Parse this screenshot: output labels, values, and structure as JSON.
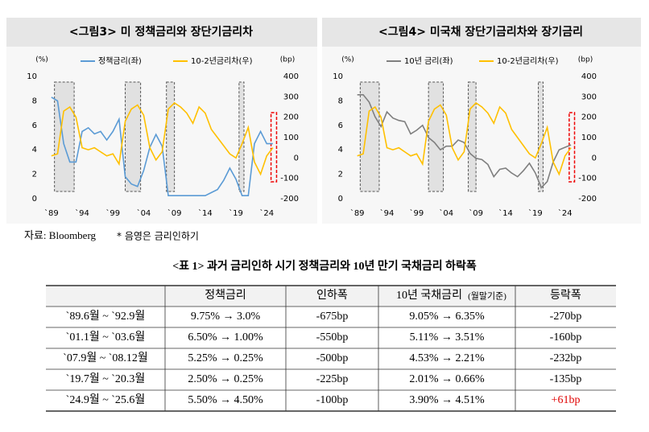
{
  "chart_data": [
    {
      "type": "line",
      "title": "<그림3> 미 정책금리와 장단기금리차",
      "y_label": "(%)",
      "y2_label": "(bp)",
      "x": [
        1989,
        1990,
        1991,
        1992,
        1993,
        1994,
        1995,
        1996,
        1997,
        1998,
        1999,
        2000,
        2001,
        2002,
        2003,
        2004,
        2005,
        2006,
        2007,
        2008,
        2009,
        2010,
        2011,
        2012,
        2013,
        2014,
        2015,
        2016,
        2017,
        2018,
        2019,
        2020,
        2021,
        2022,
        2023,
        2024,
        2025
      ],
      "xlim": [
        1988.5,
        2025.8
      ],
      "xticks": [
        {
          "value": 1989,
          "label": "`89"
        },
        {
          "value": 1994,
          "label": "`94"
        },
        {
          "value": 1999,
          "label": "`99"
        },
        {
          "value": 2004,
          "label": "`04"
        },
        {
          "value": 2009,
          "label": "`09"
        },
        {
          "value": 2014,
          "label": "`14"
        },
        {
          "value": 2019,
          "label": "`19"
        },
        {
          "value": 2024,
          "label": "`24"
        }
      ],
      "ylim": [
        0,
        10
      ],
      "yticks": [
        0,
        2,
        4,
        6,
        8,
        10
      ],
      "y2lim": [
        -200,
        400
      ],
      "y2ticks": [
        -200,
        -100,
        0,
        100,
        200,
        300,
        400
      ],
      "shaded_x": [
        [
          1989.5,
          1992.7
        ],
        [
          2001,
          2003.5
        ],
        [
          2007.7,
          2009
        ],
        [
          2019.5,
          2020.3
        ]
      ],
      "highlight_x": [
        2024.7,
        2025.6
      ],
      "series": [
        {
          "name": "정책금리(좌)",
          "color": "#5b9bd5",
          "values": [
            8.3,
            8.0,
            4.5,
            3.0,
            3.0,
            5.5,
            5.8,
            5.3,
            5.5,
            4.8,
            5.5,
            6.5,
            1.8,
            1.2,
            1.0,
            2.3,
            4.2,
            5.25,
            4.3,
            0.25,
            0.25,
            0.25,
            0.25,
            0.25,
            0.25,
            0.25,
            0.5,
            0.75,
            1.5,
            2.5,
            1.6,
            0.25,
            0.25,
            4.5,
            5.5,
            4.5,
            4.5
          ]
        },
        {
          "name": "10-2년금리차(우)",
          "color": "#ffc000",
          "axis": "y2",
          "values": [
            10,
            20,
            230,
            250,
            200,
            50,
            40,
            50,
            30,
            10,
            20,
            -30,
            180,
            240,
            260,
            210,
            50,
            -10,
            30,
            240,
            270,
            250,
            220,
            170,
            250,
            220,
            140,
            100,
            60,
            20,
            0,
            70,
            150,
            -20,
            -80,
            10,
            50
          ]
        }
      ]
    },
    {
      "type": "line",
      "title": "<그림4> 미국채 장단기금리차와 장기금리",
      "y_label": "(%)",
      "y2_label": "(bp)",
      "x": [
        1989,
        1990,
        1991,
        1992,
        1993,
        1994,
        1995,
        1996,
        1997,
        1998,
        1999,
        2000,
        2001,
        2002,
        2003,
        2004,
        2005,
        2006,
        2007,
        2008,
        2009,
        2010,
        2011,
        2012,
        2013,
        2014,
        2015,
        2016,
        2017,
        2018,
        2019,
        2020,
        2021,
        2022,
        2023,
        2024,
        2025
      ],
      "xlim": [
        1988.5,
        2025.8
      ],
      "xticks": [
        {
          "value": 1989,
          "label": "`89"
        },
        {
          "value": 1994,
          "label": "`94"
        },
        {
          "value": 1999,
          "label": "`99"
        },
        {
          "value": 2004,
          "label": "`04"
        },
        {
          "value": 2009,
          "label": "`09"
        },
        {
          "value": 2014,
          "label": "`14"
        },
        {
          "value": 2019,
          "label": "`19"
        },
        {
          "value": 2024,
          "label": "`24"
        }
      ],
      "ylim": [
        0,
        10
      ],
      "yticks": [
        0,
        2,
        4,
        6,
        8,
        10
      ],
      "y2lim": [
        -200,
        400
      ],
      "y2ticks": [
        -200,
        -100,
        0,
        100,
        200,
        300,
        400
      ],
      "shaded_x": [
        [
          1989.5,
          1992.7
        ],
        [
          2001,
          2003.5
        ],
        [
          2007.7,
          2009
        ],
        [
          2019.5,
          2020.3
        ]
      ],
      "highlight_x": [
        2024.7,
        2025.6
      ],
      "series": [
        {
          "name": "10년 금리(좌)",
          "color": "#7f7f7f",
          "values": [
            8.5,
            8.5,
            7.9,
            6.7,
            5.9,
            7.1,
            6.6,
            6.4,
            6.3,
            5.3,
            5.6,
            6.0,
            5.0,
            4.6,
            4.0,
            4.3,
            4.3,
            4.8,
            4.6,
            3.7,
            3.3,
            3.2,
            2.8,
            1.8,
            2.4,
            2.5,
            2.1,
            1.8,
            2.3,
            2.9,
            2.1,
            0.9,
            1.4,
            3.0,
            4.0,
            4.2,
            4.4
          ]
        },
        {
          "name": "10-2년금리차(우)",
          "color": "#ffc000",
          "axis": "y2",
          "values": [
            10,
            20,
            230,
            250,
            200,
            50,
            40,
            50,
            30,
            10,
            20,
            -30,
            180,
            240,
            260,
            210,
            50,
            -10,
            30,
            240,
            270,
            250,
            220,
            170,
            250,
            220,
            140,
            100,
            60,
            20,
            0,
            70,
            150,
            -20,
            -80,
            10,
            50
          ]
        }
      ]
    }
  ],
  "source": "자료: Bloomberg",
  "note": "* 음영은 금리인하기",
  "table": {
    "title": "<표 1> 과거 금리인하 시기 정책금리와 10년 만기 국채금리 하락폭",
    "header": [
      "정책금리",
      "인하폭",
      "10년 국채금리",
      "등락폭"
    ],
    "header_note": "(월말기준)",
    "rows": [
      [
        "`89.6월 ~ `92.9월",
        "9.75% → 3.0%",
        "-675bp",
        "9.05% → 6.35%",
        "-270bp"
      ],
      [
        "`01.1월 ~ `03.6월",
        "6.50% → 1.00%",
        "-550bp",
        "5.11% → 3.51%",
        "-160bp"
      ],
      [
        "`07.9월 ~ `08.12월",
        "5.25% → 0.25%",
        "-500bp",
        "4.53% → 2.21%",
        "-232bp"
      ],
      [
        "`19.7월 ~ `20.3월",
        "2.50% → 0.25%",
        "-225bp",
        "2.01% → 0.66%",
        "-135bp"
      ],
      [
        "`24.9월 ~ `25.6월",
        "5.50% → 4.50%",
        "-100bp",
        "3.90% → 4.51%",
        "+61bp"
      ]
    ]
  }
}
